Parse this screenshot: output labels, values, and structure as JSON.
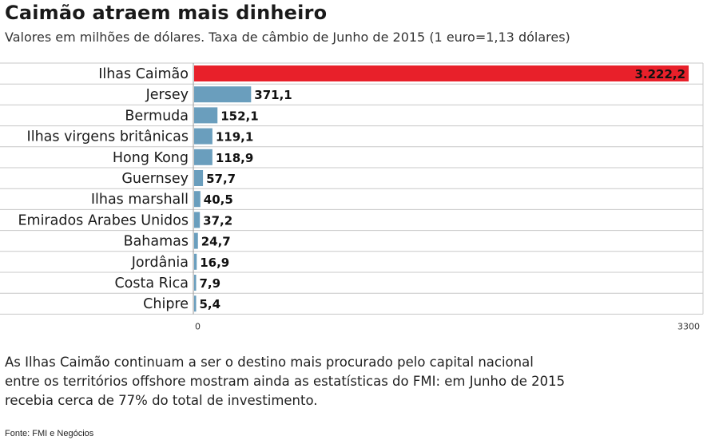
{
  "header": {
    "title": "Caimão atraem mais dinheiro",
    "subtitle": "Valores em milhões de dólares. Taxa de câmbio de Junho de 2015 (1 euro=1,13 dólares)"
  },
  "chart_data": {
    "type": "bar",
    "orientation": "horizontal",
    "categories": [
      "Ilhas Caimão",
      "Jersey",
      "Bermuda",
      "Ilhas virgens britânicas",
      "Hong Kong",
      "Guernsey",
      "Ilhas marshall",
      "Emirados Arabes Unidos",
      "Bahamas",
      "Jordânia",
      "Costa Rica",
      "Chipre"
    ],
    "values": [
      3222.2,
      371.1,
      152.1,
      119.1,
      118.9,
      57.7,
      40.5,
      37.2,
      24.7,
      16.9,
      7.9,
      5.4
    ],
    "value_labels": [
      "3.222,2",
      "371,1",
      "152,1",
      "119,1",
      "118,9",
      "57,7",
      "40,5",
      "37,2",
      "24,7",
      "16,9",
      "7,9",
      "5,4"
    ],
    "xlim": [
      0,
      3300
    ],
    "tick_labels": [
      "0",
      "3300"
    ],
    "colors": {
      "highlight": "#e8202a",
      "default": "#6a9ebd"
    }
  },
  "description": [
    "As Ilhas Caimão continuam a ser o destino mais procurado pelo capital nacional",
    "entre os territórios offshore mostram ainda as estatísticas do FMI: em Junho de 2015",
    "recebia cerca de 77% do total de investimento."
  ],
  "source": "Fonte: FMI e Negócios"
}
